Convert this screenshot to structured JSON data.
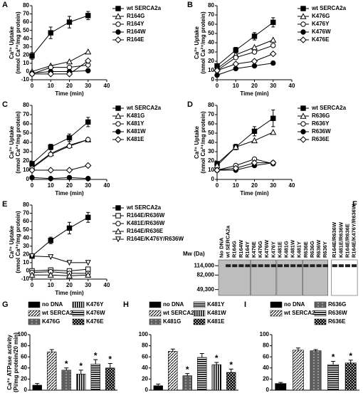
{
  "chart_data": [
    {
      "type": "line",
      "panel": "A",
      "x": [
        0,
        10,
        20,
        30
      ],
      "xlim": [
        0,
        40
      ],
      "xticks": [
        0,
        10,
        20,
        30,
        40
      ],
      "ylim": [
        -10,
        80
      ],
      "yticks": [
        -10,
        0,
        10,
        20,
        30,
        40,
        50,
        60,
        70,
        80
      ],
      "xlabel": "Time (min)",
      "ylabel": [
        "Ca²⁺ Uptake",
        "(nmol Ca²⁺/mg protein)"
      ],
      "series": [
        {
          "name": "wt SERCA2a",
          "marker": "square-filled",
          "values": [
            19,
            47,
            60,
            68
          ],
          "errors": [
            4,
            7,
            7,
            5
          ]
        },
        {
          "name": "R164G",
          "marker": "triangle-open",
          "values": [
            0,
            7,
            12,
            24
          ]
        },
        {
          "name": "R164Y",
          "marker": "circle-open",
          "values": [
            -3,
            5,
            5,
            8
          ]
        },
        {
          "name": "R164W",
          "marker": "circle-filled",
          "values": [
            -2,
            0,
            0,
            1
          ]
        },
        {
          "name": "R164E",
          "marker": "diamond-open",
          "values": [
            -3,
            -3,
            -3,
            13
          ]
        }
      ]
    },
    {
      "type": "line",
      "panel": "B",
      "x": [
        0,
        10,
        20,
        30
      ],
      "xlim": [
        0,
        40
      ],
      "xticks": [
        0,
        10,
        20,
        30,
        40
      ],
      "ylim": [
        0,
        80
      ],
      "yticks": [
        0,
        10,
        20,
        30,
        40,
        50,
        60,
        70,
        80
      ],
      "xlabel": "Time (min)",
      "ylabel": [
        "Ca²⁺ Uptake",
        "(nmol Ca²⁺/mg protein)"
      ],
      "series": [
        {
          "name": "wt SERCA2a",
          "marker": "square-filled",
          "values": [
            15,
            32,
            47,
            62
          ],
          "errors": [
            2,
            3,
            4,
            5
          ]
        },
        {
          "name": "K476G",
          "marker": "triangle-open",
          "values": [
            12,
            27,
            35,
            43
          ]
        },
        {
          "name": "K476Y",
          "marker": "circle-open",
          "values": [
            10,
            24,
            30,
            37
          ]
        },
        {
          "name": "K476W",
          "marker": "circle-filled",
          "values": [
            5,
            12,
            15,
            18
          ]
        },
        {
          "name": "K476E",
          "marker": "diamond-open",
          "values": [
            10,
            17,
            20,
            28
          ]
        }
      ]
    },
    {
      "type": "line",
      "panel": "C",
      "x": [
        0,
        10,
        20,
        30
      ],
      "xlim": [
        0,
        40
      ],
      "xticks": [
        0,
        10,
        20,
        30,
        40
      ],
      "ylim": [
        0,
        80
      ],
      "yticks": [
        0,
        10,
        20,
        30,
        40,
        50,
        60,
        70,
        80
      ],
      "xlabel": "Time (min)",
      "ylabel": [
        "Ca²⁺ Uptake",
        "(nmol Ca²⁺/mg protein)"
      ],
      "series": [
        {
          "name": "wt SERCA2a",
          "marker": "square-filled",
          "values": [
            17,
            35,
            45,
            62
          ],
          "errors": [
            2,
            3,
            4,
            5
          ]
        },
        {
          "name": "K481G",
          "marker": "triangle-open",
          "values": [
            13,
            28,
            37,
            43
          ]
        },
        {
          "name": "K481Y",
          "marker": "circle-open",
          "values": [
            12,
            27,
            36,
            43
          ]
        },
        {
          "name": "K481W",
          "marker": "circle-filled",
          "values": [
            2,
            1,
            2,
            1
          ]
        },
        {
          "name": "K481E",
          "marker": "diamond-open",
          "values": [
            10,
            10,
            10,
            15
          ]
        }
      ]
    },
    {
      "type": "line",
      "panel": "D",
      "x": [
        0,
        10,
        20,
        30
      ],
      "xlim": [
        0,
        40
      ],
      "xticks": [
        0,
        10,
        20,
        30,
        40
      ],
      "ylim": [
        0,
        80
      ],
      "yticks": [
        0,
        10,
        20,
        30,
        40,
        50,
        60,
        70,
        80
      ],
      "xlabel": "Time (min)",
      "ylabel": [
        "Ca²⁺ Uptake",
        "(nmol Ca²⁺/mg protein)"
      ],
      "series": [
        {
          "name": "wt SERCA2a",
          "marker": "square-filled",
          "values": [
            17,
            35,
            52,
            66
          ],
          "errors": [
            2,
            3,
            5,
            9
          ]
        },
        {
          "name": "R636G",
          "marker": "triangle-open",
          "values": [
            15,
            35,
            42,
            51
          ]
        },
        {
          "name": "R636Y",
          "marker": "circle-open",
          "values": [
            10,
            15,
            22,
            17
          ]
        },
        {
          "name": "R636W",
          "marker": "circle-filled",
          "values": [
            10,
            10,
            15,
            18
          ]
        },
        {
          "name": "R636E",
          "marker": "diamond-open",
          "values": [
            10,
            12,
            18,
            18
          ]
        }
      ]
    },
    {
      "type": "line",
      "panel": "E",
      "x": [
        0,
        10,
        20,
        30
      ],
      "xlim": [
        0,
        40
      ],
      "xticks": [
        0,
        10,
        20,
        30,
        40
      ],
      "ylim": [
        -10,
        80
      ],
      "yticks": [
        -10,
        0,
        10,
        20,
        30,
        40,
        50,
        60,
        70,
        80
      ],
      "xlabel": "Time (min)",
      "ylabel": [
        "Ca²⁺ Uptake",
        "(nmol Ca²⁺/mg protein)"
      ],
      "series": [
        {
          "name": "wt SERCA2a",
          "marker": "square-filled",
          "values": [
            18,
            37,
            52,
            65
          ],
          "errors": [
            2,
            4,
            7,
            6
          ]
        },
        {
          "name": "R164E/R636W",
          "marker": "square-open",
          "values": [
            0,
            1,
            0,
            2
          ]
        },
        {
          "name": "K481E/R636W",
          "marker": "circle-open",
          "values": [
            -2,
            -1,
            -3,
            -3
          ]
        },
        {
          "name": "R164E/R636E",
          "marker": "triangle-open",
          "values": [
            -5,
            -5,
            -6,
            -5
          ]
        },
        {
          "name": "R164E/K476Y/R636W",
          "marker": "triangle-down-open",
          "values": [
            18,
            17,
            10,
            10
          ]
        }
      ]
    },
    {
      "type": "blot",
      "panel": "F",
      "lanes": [
        "No DNA",
        "wt SERCA2a",
        "R164G",
        "R164W",
        "R164Y",
        "K476E",
        "K476G",
        "K476W",
        "K476Y",
        "K481E",
        "K481G",
        "K481W",
        "K481Y",
        "R636E",
        "R636G",
        "R636W",
        "R636Y",
        "R164E/R636W",
        "K481E/R636W",
        "R164E/R636E",
        "R164E/K476Y/R636W"
      ],
      "ylabel": "Mw (Da)",
      "yticks": [
        {
          "value": 114000,
          "label": "114,000"
        },
        {
          "value": 82000,
          "label": "82,000"
        },
        {
          "value": 49300,
          "label": "49,300"
        }
      ]
    },
    {
      "type": "bar",
      "panel": "G",
      "categories": [
        "no DNA",
        "wt SERCA2a",
        "K476G",
        "K476Y",
        "K476W",
        "K476E"
      ],
      "patterns": [
        "solid",
        "diag",
        "brick",
        "vert",
        "horiz",
        "check"
      ],
      "values": [
        9,
        69,
        36,
        29,
        47,
        40
      ],
      "errors": [
        3,
        4,
        4,
        7,
        8,
        8
      ],
      "significance": [
        null,
        null,
        "*",
        "*",
        "*",
        "*"
      ],
      "ylim": [
        0,
        100
      ],
      "yticks": [
        0,
        20,
        40,
        60,
        80,
        100
      ],
      "ylabel": [
        "Ca²⁺ ATPase activity",
        "(Pi/mg protein/20 min)"
      ]
    },
    {
      "type": "bar",
      "panel": "H",
      "categories": [
        "no DNA",
        "wt SERCA2a",
        "K481G",
        "K481Y",
        "K481W",
        "K481E"
      ],
      "patterns": [
        "solid",
        "diag",
        "brick",
        "horiz",
        "vert",
        "check"
      ],
      "values": [
        8,
        70,
        26,
        59,
        46,
        32
      ],
      "errors": [
        3,
        4,
        4,
        7,
        4,
        6
      ],
      "significance": [
        null,
        null,
        "*",
        null,
        "*",
        "*"
      ],
      "ylim": [
        0,
        100
      ],
      "yticks": [
        0,
        20,
        40,
        60,
        80,
        100
      ]
    },
    {
      "type": "bar",
      "panel": "I",
      "categories": [
        "no DNA",
        "wt SERCA2a",
        "R636G",
        "R636W",
        "R636E"
      ],
      "patterns": [
        "solid",
        "diag",
        "brick",
        "horiz",
        "check"
      ],
      "values": [
        12,
        72,
        71,
        46,
        49
      ],
      "errors": [
        2,
        4,
        2,
        6,
        5
      ],
      "significance": [
        null,
        null,
        null,
        "*",
        "*"
      ],
      "ylim": [
        0,
        100
      ],
      "yticks": [
        0,
        20,
        40,
        60,
        80,
        100
      ]
    }
  ]
}
